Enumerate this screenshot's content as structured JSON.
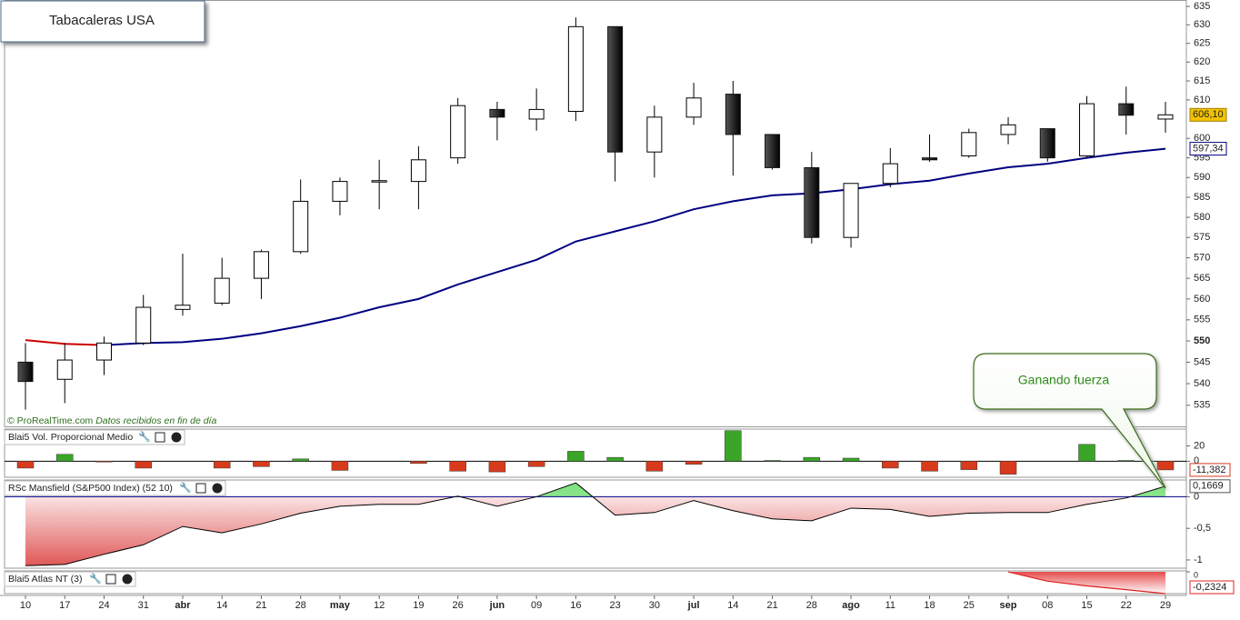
{
  "chart_data": {
    "type": "candlestick",
    "title": "Tabacaleras USA",
    "watermark": "© ProRealTime.com",
    "watermark_note": "Datos recibidos en fin de día",
    "annotation": "Ganando fuerza",
    "categories": [
      "10",
      "17",
      "24",
      "31",
      "abr",
      "14",
      "21",
      "28",
      "may",
      "12",
      "19",
      "26",
      "jun",
      "09",
      "16",
      "23",
      "30",
      "jul",
      "14",
      "21",
      "28",
      "ago",
      "11",
      "18",
      "25",
      "sep",
      "08",
      "15",
      "22",
      "29"
    ],
    "log_scale": true,
    "ylim": [
      533.5,
      636.5
    ],
    "yticks": [
      535,
      540,
      545,
      550,
      555,
      560,
      565,
      570,
      575,
      580,
      585,
      590,
      595,
      600,
      610,
      615,
      620,
      625,
      630,
      635
    ],
    "emphasized_ytick": 550,
    "open": [
      545,
      541,
      545.5,
      549.5,
      557.5,
      559,
      565,
      571.5,
      584,
      589,
      589,
      595,
      607.5,
      605,
      607,
      629.5,
      596.5,
      605.5,
      611.5,
      601,
      592.5,
      575,
      588.5,
      595,
      595.5,
      601,
      602.5,
      595.5,
      609,
      605
    ],
    "high": [
      549.5,
      549.5,
      551,
      561,
      571,
      570,
      572,
      589.5,
      590,
      594.5,
      598,
      610.5,
      609.5,
      613,
      632,
      629.5,
      608.5,
      614.5,
      615,
      601,
      596.5,
      588.5,
      597.5,
      601,
      602.5,
      605.5,
      602.5,
      611,
      613.5,
      609.5
    ],
    "low": [
      534,
      535.5,
      542,
      549,
      556,
      558.5,
      560,
      571,
      580.5,
      582,
      582,
      593.5,
      599.5,
      602,
      604.5,
      589,
      590,
      603.5,
      590.5,
      592,
      573.5,
      572.5,
      587.5,
      594,
      595,
      598.5,
      594,
      595,
      601,
      601.5
    ],
    "close": [
      540.5,
      545.5,
      549.5,
      558,
      558.5,
      565,
      571.5,
      584,
      589,
      589.2,
      594.5,
      608.5,
      605.5,
      607.5,
      629.5,
      596.5,
      605.5,
      610.5,
      601,
      592.5,
      575,
      588.5,
      593.5,
      594.5,
      601.5,
      603.5,
      595,
      609,
      606,
      606.1
    ],
    "up_color": "#ffffff",
    "down_color": "#111111",
    "last_price": {
      "value": 606.1,
      "label": "606,10",
      "color": "#f2c200"
    },
    "moving_average": {
      "values": [
        550.2,
        549.3,
        549,
        549.5,
        549.7,
        550.5,
        551.8,
        553.5,
        555.5,
        558,
        560,
        563.5,
        566.5,
        569.5,
        574,
        576.5,
        579,
        582,
        584,
        585.5,
        586,
        587,
        588.3,
        589.2,
        591,
        592.6,
        593.5,
        595,
        596.3,
        597.34
      ],
      "colors": [
        "#cc0000",
        "#cc0000",
        "#000080",
        "#000080",
        "#000080",
        "#000080",
        "#000080",
        "#000080",
        "#000080",
        "#000080",
        "#000080",
        "#000080",
        "#000080",
        "#000080",
        "#000080",
        "#000080",
        "#000080",
        "#000080",
        "#000080",
        "#000080",
        "#000080",
        "#000080",
        "#000080",
        "#000080",
        "#000080",
        "#000080",
        "#000080",
        "#000080",
        "#000080",
        "#000080"
      ],
      "last": {
        "value": 597.34,
        "label": "597,34"
      }
    },
    "volume": {
      "name": "Blai5 Vol. Proporcional Medio",
      "values": [
        -9,
        9,
        -1,
        -9,
        0,
        -9,
        -7,
        3,
        -12,
        0,
        -3,
        -13,
        -14,
        -7,
        13,
        5,
        -13,
        -4,
        40,
        1,
        5,
        4,
        -9,
        -13,
        -11,
        -17,
        0,
        22,
        1,
        -11.382
      ],
      "ylim": [
        -21,
        42
      ],
      "yticks": [
        0,
        20
      ],
      "last": {
        "value": -11.382,
        "label": "-11,382"
      },
      "up_color": "#3aa526",
      "down_color": "#d83a1c"
    },
    "rsc": {
      "name": "RSc Mansfield (S&P500 Index) (52 10)",
      "values": [
        -1.09,
        -1.07,
        -0.91,
        -0.76,
        -0.47,
        -0.57,
        -0.43,
        -0.26,
        -0.15,
        -0.12,
        -0.12,
        0.01,
        -0.15,
        0,
        0.22,
        -0.29,
        -0.25,
        -0.06,
        -0.22,
        -0.35,
        -0.38,
        -0.18,
        -0.2,
        -0.31,
        -0.26,
        -0.25,
        -0.25,
        -0.12,
        -0.02,
        0.1669
      ],
      "ylim": [
        -1.13,
        0.265
      ],
      "yticks": [
        0,
        {
          "value": -0.5,
          "label": "-0,5"
        },
        -1
      ],
      "last": {
        "value": 0.1669,
        "label": "0,1669"
      },
      "up_color": "#7be07b",
      "down_color": "#e05858"
    },
    "atlas": {
      "name": "Blai5 Atlas NT (3)",
      "values": [
        null,
        null,
        null,
        null,
        null,
        null,
        null,
        null,
        null,
        null,
        null,
        null,
        null,
        null,
        null,
        null,
        null,
        null,
        null,
        null,
        null,
        null,
        null,
        null,
        null,
        0,
        -0.1,
        -0.15,
        -0.19,
        -0.2324
      ],
      "ylim": [
        -0.2324,
        0.01
      ],
      "yticks": [
        0
      ],
      "last": {
        "value": -0.2324,
        "label": "-0,2324"
      },
      "color": "#e02020"
    }
  }
}
